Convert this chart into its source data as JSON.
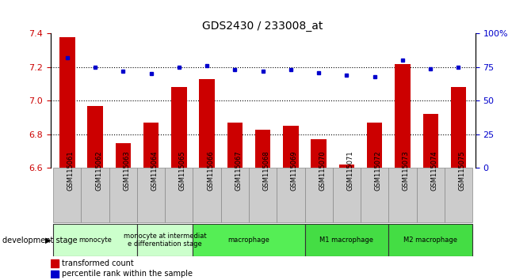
{
  "title": "GDS2430 / 233008_at",
  "samples": [
    "GSM115061",
    "GSM115062",
    "GSM115063",
    "GSM115064",
    "GSM115065",
    "GSM115066",
    "GSM115067",
    "GSM115068",
    "GSM115069",
    "GSM115070",
    "GSM115071",
    "GSM115072",
    "GSM115073",
    "GSM115074",
    "GSM115075"
  ],
  "transformed_count": [
    7.38,
    6.97,
    6.75,
    6.87,
    7.08,
    7.13,
    6.87,
    6.83,
    6.85,
    6.77,
    6.62,
    6.87,
    7.22,
    6.92,
    7.08
  ],
  "percentile_rank": [
    82,
    75,
    72,
    70,
    75,
    76,
    73,
    72,
    73,
    71,
    69,
    68,
    80,
    74,
    75
  ],
  "ylim_left": [
    6.6,
    7.4
  ],
  "ylim_right": [
    0,
    100
  ],
  "yticks_left": [
    6.6,
    6.8,
    7.0,
    7.2,
    7.4
  ],
  "yticks_right": [
    0,
    25,
    50,
    75,
    100
  ],
  "ytick_labels_right": [
    "0",
    "25",
    "50",
    "75",
    "100%"
  ],
  "hlines": [
    6.8,
    7.0,
    7.2
  ],
  "bar_color": "#CC0000",
  "dot_color": "#0000CC",
  "stage_groups": [
    {
      "label": "monocyte",
      "start": 0,
      "end": 3,
      "color": "#ccffcc"
    },
    {
      "label": "monocyte at intermediat\ne differentiation stage",
      "start": 3,
      "end": 5,
      "color": "#ccffcc"
    },
    {
      "label": "macrophage",
      "start": 5,
      "end": 9,
      "color": "#55ee55"
    },
    {
      "label": "M1 macrophage",
      "start": 9,
      "end": 12,
      "color": "#44dd44"
    },
    {
      "label": "M2 macrophage",
      "start": 12,
      "end": 15,
      "color": "#44dd44"
    }
  ],
  "legend_bar_label": "transformed count",
  "legend_dot_label": "percentile rank within the sample",
  "dev_stage_label": "development stage",
  "axis_label_color_left": "#CC0000",
  "axis_label_color_right": "#0000CC",
  "xtick_bg_color": "#cccccc",
  "bar_width": 0.55
}
